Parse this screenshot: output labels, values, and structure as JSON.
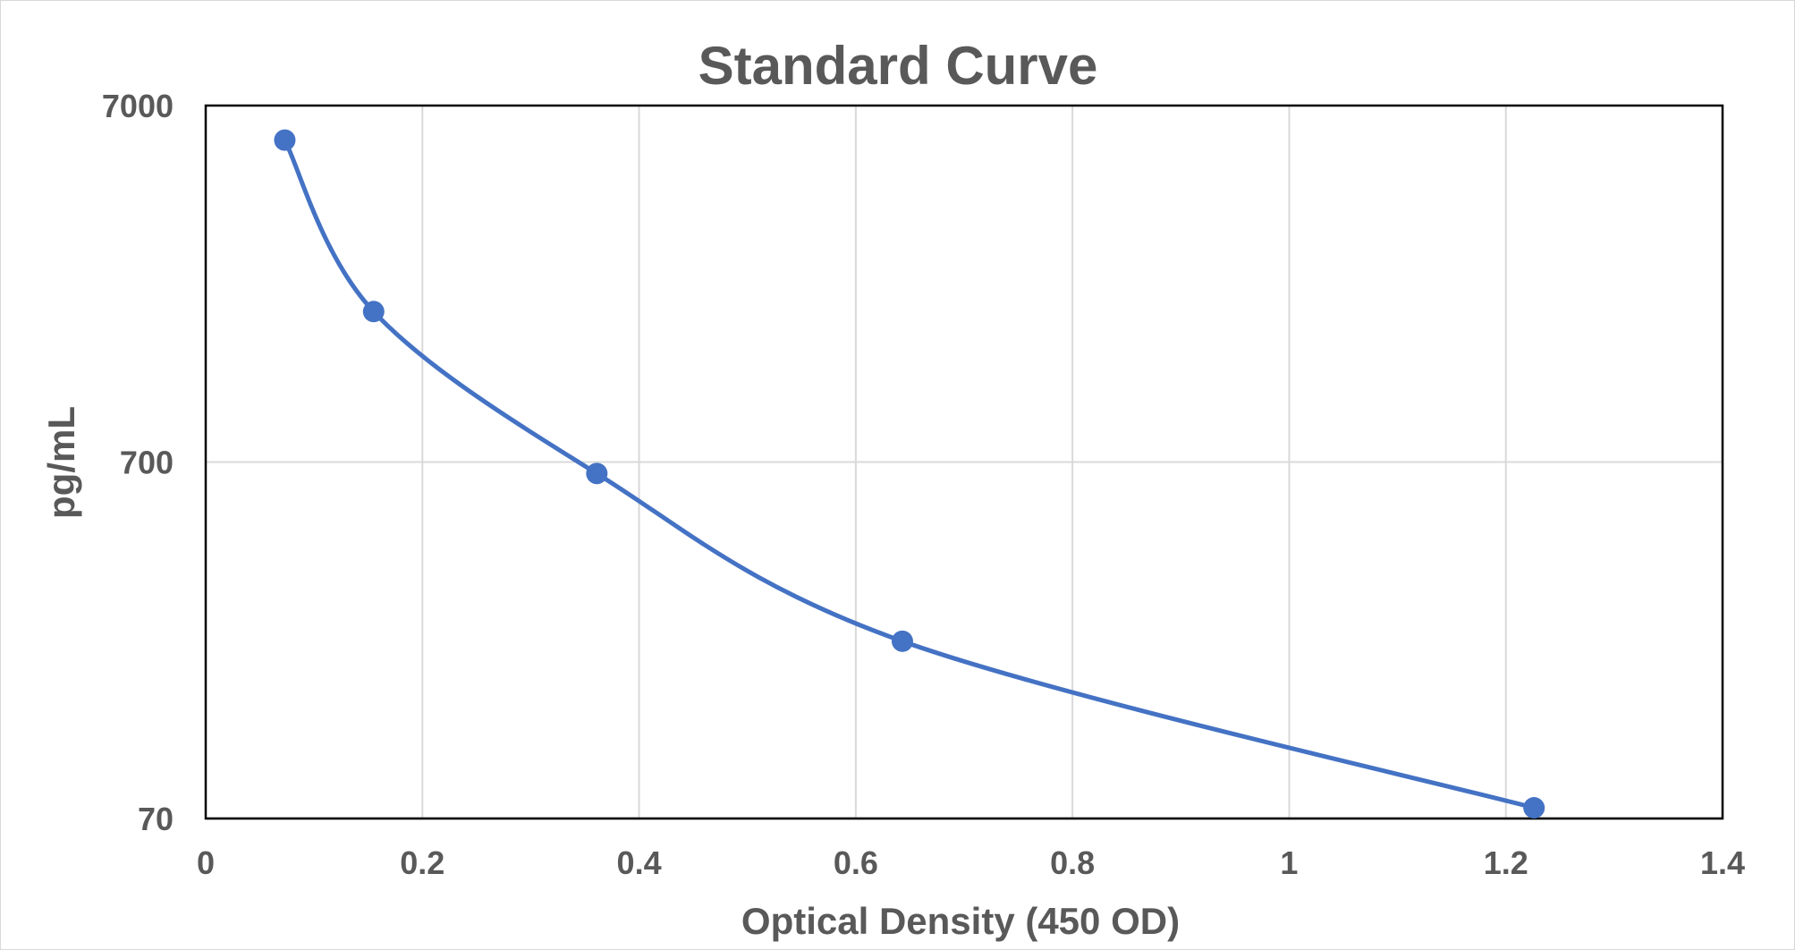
{
  "chart_data": {
    "type": "scatter",
    "title": "Standard Curve",
    "xlabel": "Optical Density (450 OD)",
    "ylabel": "pg/mL",
    "xlim": [
      0,
      1.4
    ],
    "ylim": [
      70,
      7000
    ],
    "yscale": "log",
    "grid": true,
    "line_style": "smoothed",
    "x_ticks": [
      {
        "value": 0,
        "label": "0"
      },
      {
        "value": 0.2,
        "label": "0.2"
      },
      {
        "value": 0.4,
        "label": "0.4"
      },
      {
        "value": 0.6,
        "label": "0.6"
      },
      {
        "value": 0.8,
        "label": "0.8"
      },
      {
        "value": 1,
        "label": "1"
      },
      {
        "value": 1.2,
        "label": "1.2"
      },
      {
        "value": 1.4,
        "label": "1.4"
      }
    ],
    "y_ticks": [
      {
        "value": 70,
        "label": "70"
      },
      {
        "value": 700,
        "label": "700"
      },
      {
        "value": 7000,
        "label": "7000"
      }
    ],
    "series": [
      {
        "color": "#4472c4",
        "points": [
          {
            "x": 0.073,
            "y": 5600
          },
          {
            "x": 0.155,
            "y": 1850
          },
          {
            "x": 0.361,
            "y": 650
          },
          {
            "x": 0.643,
            "y": 220
          },
          {
            "x": 1.226,
            "y": 75
          }
        ]
      }
    ]
  }
}
